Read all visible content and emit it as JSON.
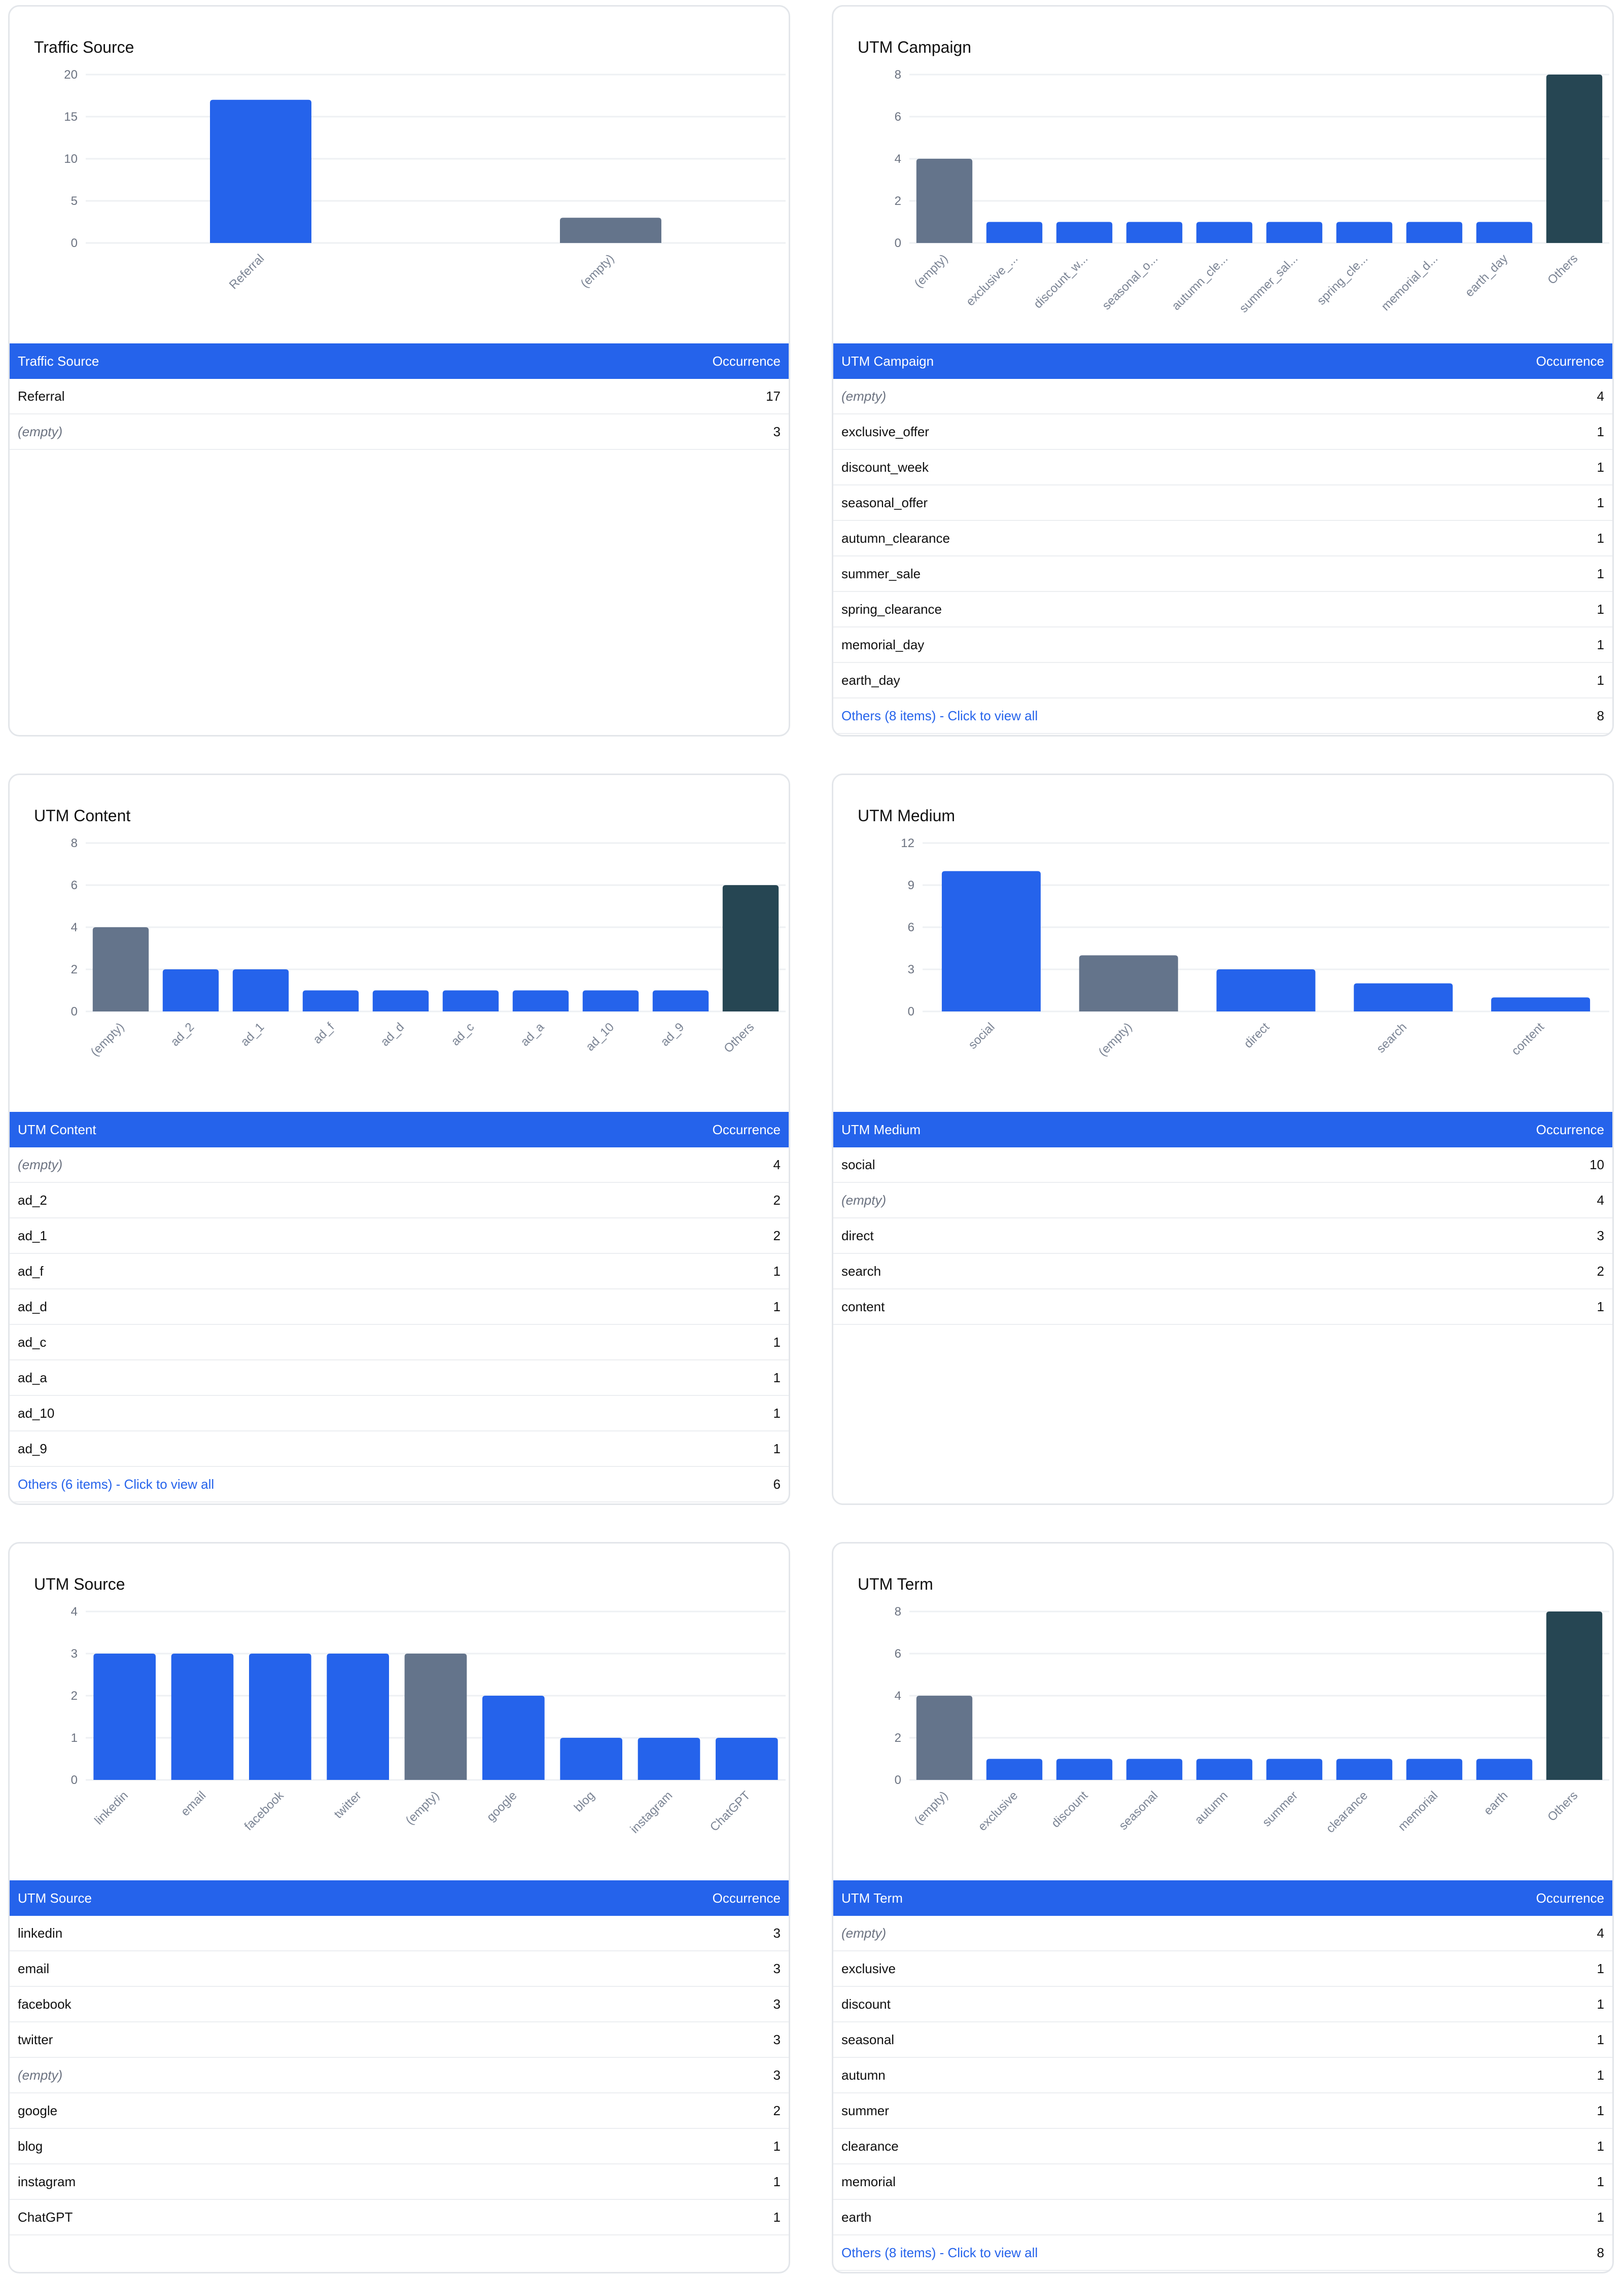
{
  "colors": {
    "bar_primary": "#2563eb",
    "bar_empty": "#64748b",
    "bar_others": "#264653",
    "header_bg": "#2563eb"
  },
  "cards": [
    {
      "id": "traffic-source",
      "title": "Traffic Source",
      "table_header": {
        "label": "Traffic Source",
        "count": "Occurrence"
      },
      "rows": [
        {
          "label": "Referral",
          "value": "17",
          "kind": "normal"
        },
        {
          "label": "(empty)",
          "value": "3",
          "kind": "empty"
        }
      ],
      "chart_data": {
        "type": "bar",
        "title": "Traffic Source",
        "categories": [
          "Referral",
          "(empty)"
        ],
        "values": [
          17,
          3
        ],
        "kinds": [
          "normal",
          "empty"
        ],
        "ylim": [
          0,
          20
        ],
        "yticks": [
          0,
          5,
          10,
          15,
          20
        ],
        "grid": true
      }
    },
    {
      "id": "utm-campaign",
      "title": "UTM Campaign",
      "table_header": {
        "label": "UTM Campaign",
        "count": "Occurrence"
      },
      "rows": [
        {
          "label": "(empty)",
          "value": "4",
          "kind": "empty"
        },
        {
          "label": "exclusive_offer",
          "value": "1",
          "kind": "normal"
        },
        {
          "label": "discount_week",
          "value": "1",
          "kind": "normal"
        },
        {
          "label": "seasonal_offer",
          "value": "1",
          "kind": "normal"
        },
        {
          "label": "autumn_clearance",
          "value": "1",
          "kind": "normal"
        },
        {
          "label": "summer_sale",
          "value": "1",
          "kind": "normal"
        },
        {
          "label": "spring_clearance",
          "value": "1",
          "kind": "normal"
        },
        {
          "label": "memorial_day",
          "value": "1",
          "kind": "normal"
        },
        {
          "label": "earth_day",
          "value": "1",
          "kind": "normal"
        },
        {
          "label": "Others (8 items) - Click to view all",
          "value": "8",
          "kind": "others"
        }
      ],
      "chart_data": {
        "type": "bar",
        "title": "UTM Campaign",
        "categories": [
          "(empty)",
          "exclusive_...",
          "discount_w...",
          "seasonal_o...",
          "autumn_cle...",
          "summer_sal...",
          "spring_cle...",
          "memorial_d...",
          "earth_day",
          "Others"
        ],
        "values": [
          4,
          1,
          1,
          1,
          1,
          1,
          1,
          1,
          1,
          8
        ],
        "kinds": [
          "empty",
          "normal",
          "normal",
          "normal",
          "normal",
          "normal",
          "normal",
          "normal",
          "normal",
          "others"
        ],
        "ylim": [
          0,
          8
        ],
        "yticks": [
          0,
          2,
          4,
          6,
          8
        ],
        "grid": true
      }
    },
    {
      "id": "utm-content",
      "title": "UTM Content",
      "table_header": {
        "label": "UTM Content",
        "count": "Occurrence"
      },
      "rows": [
        {
          "label": "(empty)",
          "value": "4",
          "kind": "empty"
        },
        {
          "label": "ad_2",
          "value": "2",
          "kind": "normal"
        },
        {
          "label": "ad_1",
          "value": "2",
          "kind": "normal"
        },
        {
          "label": "ad_f",
          "value": "1",
          "kind": "normal"
        },
        {
          "label": "ad_d",
          "value": "1",
          "kind": "normal"
        },
        {
          "label": "ad_c",
          "value": "1",
          "kind": "normal"
        },
        {
          "label": "ad_a",
          "value": "1",
          "kind": "normal"
        },
        {
          "label": "ad_10",
          "value": "1",
          "kind": "normal"
        },
        {
          "label": "ad_9",
          "value": "1",
          "kind": "normal"
        },
        {
          "label": "Others (6 items) - Click to view all",
          "value": "6",
          "kind": "others"
        }
      ],
      "chart_data": {
        "type": "bar",
        "title": "UTM Content",
        "categories": [
          "(empty)",
          "ad_2",
          "ad_1",
          "ad_f",
          "ad_d",
          "ad_c",
          "ad_a",
          "ad_10",
          "ad_9",
          "Others"
        ],
        "values": [
          4,
          2,
          2,
          1,
          1,
          1,
          1,
          1,
          1,
          6
        ],
        "kinds": [
          "empty",
          "normal",
          "normal",
          "normal",
          "normal",
          "normal",
          "normal",
          "normal",
          "normal",
          "others"
        ],
        "ylim": [
          0,
          8
        ],
        "yticks": [
          0,
          2,
          4,
          6,
          8
        ],
        "grid": true
      }
    },
    {
      "id": "utm-medium",
      "title": "UTM Medium",
      "table_header": {
        "label": "UTM Medium",
        "count": "Occurrence"
      },
      "rows": [
        {
          "label": "social",
          "value": "10",
          "kind": "normal"
        },
        {
          "label": "(empty)",
          "value": "4",
          "kind": "empty"
        },
        {
          "label": "direct",
          "value": "3",
          "kind": "normal"
        },
        {
          "label": "search",
          "value": "2",
          "kind": "normal"
        },
        {
          "label": "content",
          "value": "1",
          "kind": "normal"
        }
      ],
      "chart_data": {
        "type": "bar",
        "title": "UTM Medium",
        "categories": [
          "social",
          "(empty)",
          "direct",
          "search",
          "content"
        ],
        "values": [
          10,
          4,
          3,
          2,
          1
        ],
        "kinds": [
          "normal",
          "empty",
          "normal",
          "normal",
          "normal"
        ],
        "ylim": [
          0,
          12
        ],
        "yticks": [
          0,
          3,
          6,
          9,
          12
        ],
        "grid": true
      }
    },
    {
      "id": "utm-source",
      "title": "UTM Source",
      "table_header": {
        "label": "UTM Source",
        "count": "Occurrence"
      },
      "rows": [
        {
          "label": "linkedin",
          "value": "3",
          "kind": "normal"
        },
        {
          "label": "email",
          "value": "3",
          "kind": "normal"
        },
        {
          "label": "facebook",
          "value": "3",
          "kind": "normal"
        },
        {
          "label": "twitter",
          "value": "3",
          "kind": "normal"
        },
        {
          "label": "(empty)",
          "value": "3",
          "kind": "empty"
        },
        {
          "label": "google",
          "value": "2",
          "kind": "normal"
        },
        {
          "label": "blog",
          "value": "1",
          "kind": "normal"
        },
        {
          "label": "instagram",
          "value": "1",
          "kind": "normal"
        },
        {
          "label": "ChatGPT",
          "value": "1",
          "kind": "normal"
        }
      ],
      "chart_data": {
        "type": "bar",
        "title": "UTM Source",
        "categories": [
          "linkedin",
          "email",
          "facebook",
          "twitter",
          "(empty)",
          "google",
          "blog",
          "instagram",
          "ChatGPT"
        ],
        "values": [
          3,
          3,
          3,
          3,
          3,
          2,
          1,
          1,
          1
        ],
        "kinds": [
          "normal",
          "normal",
          "normal",
          "normal",
          "empty",
          "normal",
          "normal",
          "normal",
          "normal"
        ],
        "ylim": [
          0,
          4
        ],
        "yticks": [
          0,
          1,
          2,
          3,
          4
        ],
        "grid": true
      }
    },
    {
      "id": "utm-term",
      "title": "UTM Term",
      "table_header": {
        "label": "UTM Term",
        "count": "Occurrence"
      },
      "rows": [
        {
          "label": "(empty)",
          "value": "4",
          "kind": "empty"
        },
        {
          "label": "exclusive",
          "value": "1",
          "kind": "normal"
        },
        {
          "label": "discount",
          "value": "1",
          "kind": "normal"
        },
        {
          "label": "seasonal",
          "value": "1",
          "kind": "normal"
        },
        {
          "label": "autumn",
          "value": "1",
          "kind": "normal"
        },
        {
          "label": "summer",
          "value": "1",
          "kind": "normal"
        },
        {
          "label": "clearance",
          "value": "1",
          "kind": "normal"
        },
        {
          "label": "memorial",
          "value": "1",
          "kind": "normal"
        },
        {
          "label": "earth",
          "value": "1",
          "kind": "normal"
        },
        {
          "label": "Others (8 items) - Click to view all",
          "value": "8",
          "kind": "others"
        }
      ],
      "chart_data": {
        "type": "bar",
        "title": "UTM Term",
        "categories": [
          "(empty)",
          "exclusive",
          "discount",
          "seasonal",
          "autumn",
          "summer",
          "clearance",
          "memorial",
          "earth",
          "Others"
        ],
        "values": [
          4,
          1,
          1,
          1,
          1,
          1,
          1,
          1,
          1,
          8
        ],
        "kinds": [
          "empty",
          "normal",
          "normal",
          "normal",
          "normal",
          "normal",
          "normal",
          "normal",
          "normal",
          "others"
        ],
        "ylim": [
          0,
          8
        ],
        "yticks": [
          0,
          2,
          4,
          6,
          8
        ],
        "grid": true
      }
    }
  ]
}
